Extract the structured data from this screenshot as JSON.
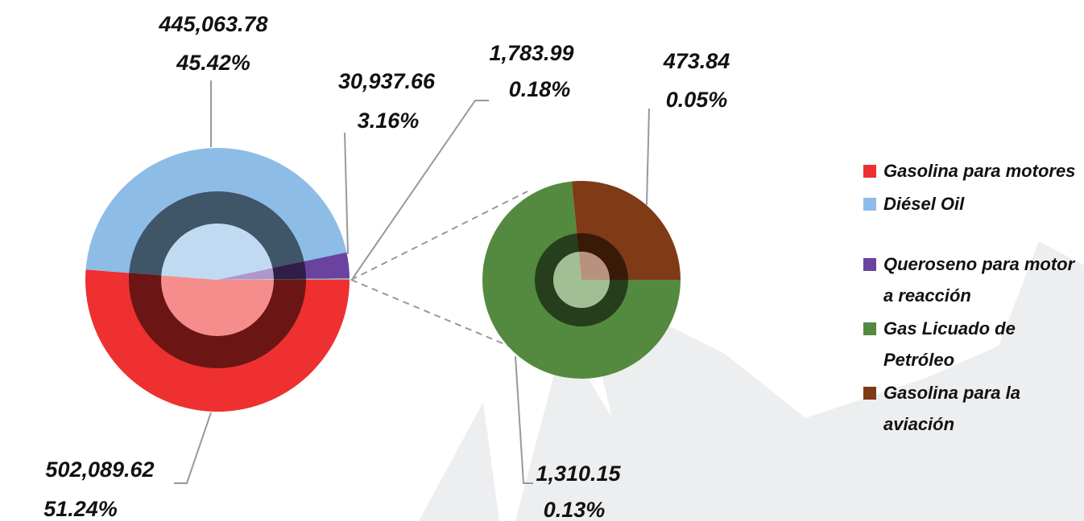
{
  "chart_data": {
    "type": "pie-of-pie",
    "categories": [
      "Gasolina para motores",
      "Diésel Oil",
      "Queroseno para motor a reacción",
      "Gas Licuado de Petróleo",
      "Gasolina para la aviación"
    ],
    "values": [
      502089.62,
      445063.78,
      30937.66,
      1310.15,
      473.84
    ],
    "value_labels": [
      "502,089.62",
      "445,063.78",
      "30,937.66",
      "1,310.15",
      "473.84"
    ],
    "percents": [
      51.24,
      45.42,
      3.16,
      0.13,
      0.05
    ],
    "percent_labels": [
      "51.24%",
      "45.42%",
      "3.16%",
      "0.13%",
      "0.05%"
    ],
    "colors": [
      "#ee3030",
      "#8dbde6",
      "#6a42a0",
      "#548a3f",
      "#7f3a16"
    ],
    "other": {
      "value": 1783.99,
      "value_label": "1,783.99",
      "percent": 0.18,
      "percent_label": "0.18%",
      "color": "#a5a5a5"
    },
    "legend": "right"
  }
}
